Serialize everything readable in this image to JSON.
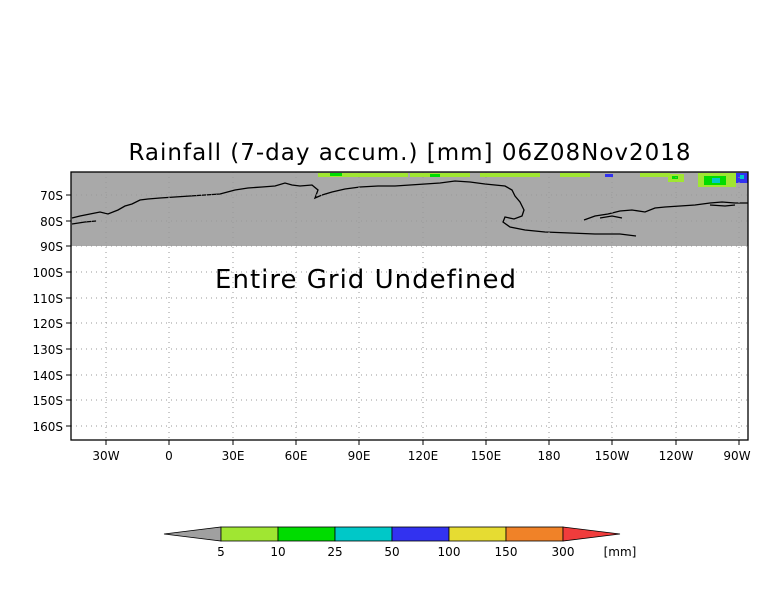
{
  "title": "Rainfall (7-day accum.) [mm] 06Z08Nov2018",
  "message": "Entire Grid Undefined",
  "lat_labels": [
    "70S",
    "80S",
    "90S",
    "100S",
    "110S",
    "120S",
    "130S",
    "140S",
    "150S",
    "160S"
  ],
  "lon_labels": [
    "30W",
    "0",
    "30E",
    "60E",
    "90E",
    "120E",
    "150E",
    "180",
    "150W",
    "120W",
    "90W"
  ],
  "legend": {
    "unit": "[mm]",
    "thresholds": [
      "5",
      "10",
      "25",
      "50",
      "100",
      "150",
      "300"
    ],
    "colors": [
      "#a0a0a0",
      "#a0e632",
      "#00dc00",
      "#00c8c8",
      "#3232f0",
      "#e6dc32",
      "#f08228",
      "#f03c3c"
    ]
  },
  "colors": {
    "undefined_fill": "#a9a9a9",
    "grid": "#999999"
  }
}
